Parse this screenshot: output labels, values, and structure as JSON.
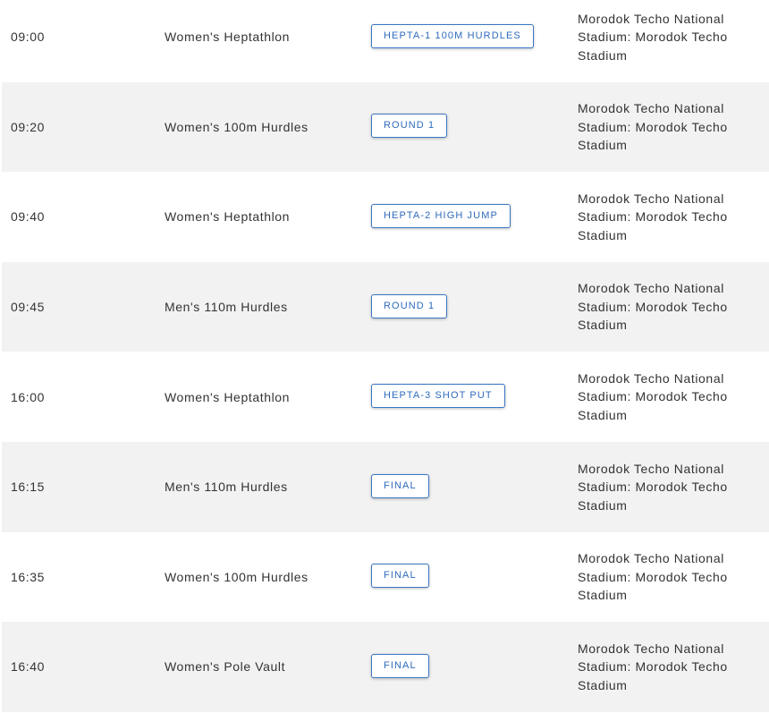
{
  "schedule": [
    {
      "time": "09:00",
      "event": "Women's Heptathlon",
      "phase": "HEPTA-1 100M HURDLES",
      "venue": "Morodok Techo National Stadium: Morodok Techo Stadium"
    },
    {
      "time": "09:20",
      "event": "Women's 100m Hurdles",
      "phase": "ROUND 1",
      "venue": "Morodok Techo National Stadium: Morodok Techo Stadium"
    },
    {
      "time": "09:40",
      "event": "Women's Heptathlon",
      "phase": "HEPTA-2 HIGH JUMP",
      "venue": "Morodok Techo National Stadium: Morodok Techo Stadium"
    },
    {
      "time": "09:45",
      "event": "Men's 110m Hurdles",
      "phase": "ROUND 1",
      "venue": "Morodok Techo National Stadium: Morodok Techo Stadium"
    },
    {
      "time": "16:00",
      "event": "Women's Heptathlon",
      "phase": "HEPTA-3 SHOT PUT",
      "venue": "Morodok Techo National Stadium: Morodok Techo Stadium"
    },
    {
      "time": "16:15",
      "event": "Men's 110m Hurdles",
      "phase": "FINAL",
      "venue": "Morodok Techo National Stadium: Morodok Techo Stadium"
    },
    {
      "time": "16:35",
      "event": "Women's 100m Hurdles",
      "phase": "FINAL",
      "venue": "Morodok Techo National Stadium: Morodok Techo Stadium"
    },
    {
      "time": "16:40",
      "event": "Women's Pole Vault",
      "phase": "FINAL",
      "venue": "Morodok Techo National Stadium: Morodok Techo Stadium"
    }
  ],
  "colors": {
    "accent": "#2f6bbd",
    "row_alt": "#f2f2f2",
    "text": "#333333"
  }
}
